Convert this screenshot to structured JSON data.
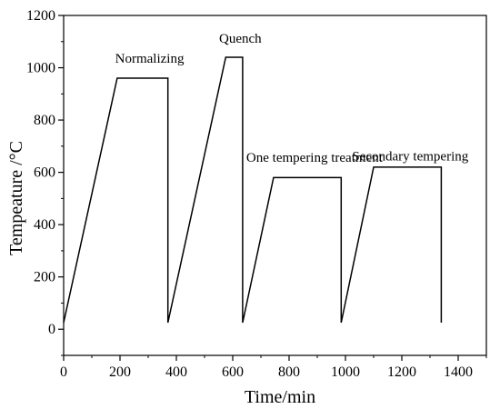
{
  "chart_data": {
    "type": "line",
    "title": "",
    "xlabel": "Time/min",
    "ylabel": "Tempeature /°C",
    "xlim": [
      0,
      1500
    ],
    "ylim": [
      -100,
      1200
    ],
    "x_ticks": [
      0,
      200,
      400,
      600,
      800,
      1000,
      1200,
      1400
    ],
    "y_ticks": [
      0,
      200,
      400,
      600,
      800,
      1000,
      1200
    ],
    "x_minor_step": 100,
    "y_minor_step": 100,
    "grid": false,
    "series": [
      {
        "x": [
          0,
          190,
          370,
          370,
          370,
          575,
          635,
          635,
          635,
          745,
          985,
          985,
          985,
          1100,
          1340,
          1340
        ],
        "y": [
          25,
          960,
          960,
          25,
          25,
          1040,
          1040,
          25,
          25,
          580,
          580,
          25,
          25,
          620,
          620,
          25
        ]
      }
    ],
    "annotations": [
      {
        "text": "Normalizing",
        "x": 305,
        "y": 1020
      },
      {
        "text": "Quench",
        "x": 627,
        "y": 1095
      },
      {
        "text": "One tempering treatment",
        "x": 890,
        "y": 640
      },
      {
        "text": "Secondary tempering",
        "x": 1230,
        "y": 645
      }
    ]
  }
}
